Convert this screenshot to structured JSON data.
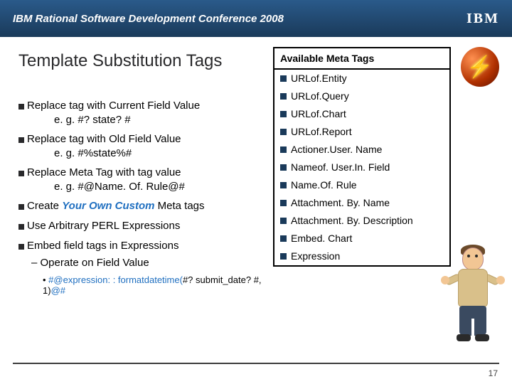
{
  "header": {
    "conference": "IBM Rational Software Development Conference 2008",
    "logo": "IBM"
  },
  "title": "Template Substitution Tags",
  "bullets": [
    {
      "text": "Replace tag with Current Field Value",
      "eg": "e. g. #? state? #"
    },
    {
      "text": "Replace tag with Old Field Value",
      "eg": "e. g. #%state%#"
    },
    {
      "text": "Replace Meta Tag with tag value",
      "eg": "e. g. #@Name. Of. Rule@#"
    },
    {
      "text_pre": "Create ",
      "text_em": "Your Own Custom",
      "text_post": " Meta tags"
    },
    {
      "text": "Use Arbitrary PERL Expressions"
    },
    {
      "text": "Embed field tags in Expressions",
      "sub": "Operate on Field Value"
    }
  ],
  "expr_line": {
    "p1": "#@expression: : formatdatetime(",
    "p2": "#? submit_date? #",
    "p3": ", 1)",
    "p4": "@#"
  },
  "meta": {
    "header": "Available Meta Tags",
    "items": [
      "URLof.Entity",
      "URLof.Query",
      "URLof.Chart",
      "URLof.Report",
      "Actioner.User. Name",
      "Nameof. User.In. Field",
      "Name.Of. Rule",
      "Attachment. By. Name",
      "Attachment. By. Description",
      "Embed. Chart",
      "Expression"
    ]
  },
  "page_number": "17",
  "colors": {
    "header_bg_top": "#2a5a8a",
    "header_bg_bottom": "#1a3a5a",
    "bullet_square": "#1a3a5a",
    "link_blue": "#1f6fc0"
  }
}
